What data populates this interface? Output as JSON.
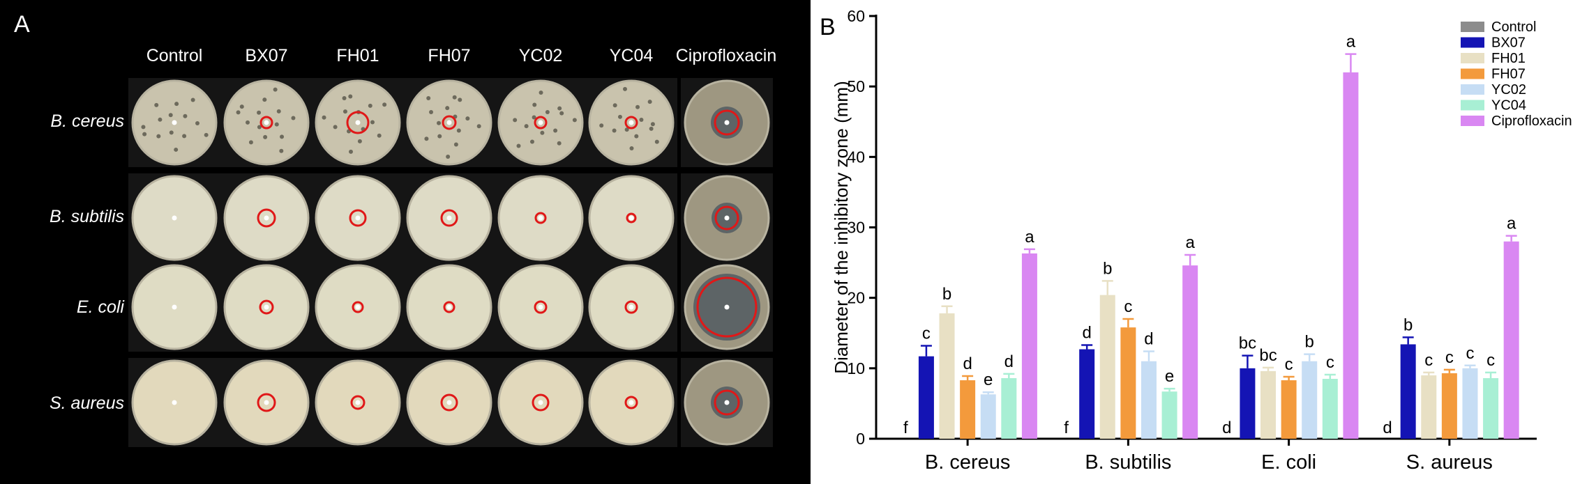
{
  "panelA": {
    "label": "A",
    "columns": [
      "Control",
      "BX07",
      "FH01",
      "FH07",
      "YC02",
      "YC04",
      "Ciprofloxacin"
    ],
    "rows": [
      "B. cereus",
      "B. subtilis",
      "E. coli",
      "S. aureus"
    ]
  },
  "chart_data": {
    "type": "bar",
    "panel_label": "B",
    "categories": [
      "B. cereus",
      "B. subtilis",
      "E. coli",
      "S. aureus"
    ],
    "ylabel": "Diameter of the inhibitory zone (mm)",
    "xlabel": "",
    "ylim": [
      0,
      60
    ],
    "yticks": [
      0,
      10,
      20,
      30,
      40,
      50,
      60
    ],
    "legend_position": "top-right",
    "series": [
      {
        "name": "Control",
        "color": "#8c8c8c",
        "values": [
          0,
          0,
          0,
          0
        ],
        "errors": [
          0,
          0,
          0,
          0
        ],
        "letters": [
          "f",
          "f",
          "d",
          "d"
        ]
      },
      {
        "name": "BX07",
        "color": "#1414b4",
        "values": [
          11.7,
          12.7,
          10.0,
          13.4
        ],
        "errors": [
          1.5,
          0.6,
          1.8,
          1.0
        ],
        "letters": [
          "c",
          "d",
          "bc",
          "b"
        ]
      },
      {
        "name": "FH01",
        "color": "#e8e0c4",
        "values": [
          17.8,
          20.4,
          9.6,
          9.0
        ],
        "errors": [
          1.0,
          2.0,
          0.5,
          0.4
        ],
        "letters": [
          "b",
          "b",
          "bc",
          "c"
        ]
      },
      {
        "name": "FH07",
        "color": "#f39a3c",
        "values": [
          8.3,
          15.8,
          8.3,
          9.3
        ],
        "errors": [
          0.6,
          1.2,
          0.5,
          0.5
        ],
        "letters": [
          "d",
          "c",
          "c",
          "c"
        ]
      },
      {
        "name": "YC02",
        "color": "#c6ddf4",
        "values": [
          6.3,
          11.0,
          11.0,
          10.0
        ],
        "errors": [
          0.3,
          1.4,
          1.0,
          0.4
        ],
        "letters": [
          "e",
          "d",
          "b",
          "c"
        ]
      },
      {
        "name": "YC04",
        "color": "#a8efd4",
        "values": [
          8.6,
          6.7,
          8.5,
          8.6
        ],
        "errors": [
          0.6,
          0.4,
          0.6,
          0.8
        ],
        "letters": [
          "d",
          "e",
          "c",
          "c"
        ]
      },
      {
        "name": "Ciprofloxacin",
        "color": "#d987f2",
        "values": [
          26.3,
          24.6,
          52.0,
          28.0
        ],
        "errors": [
          0.6,
          1.5,
          2.6,
          0.8
        ],
        "letters": [
          "a",
          "a",
          "a",
          "a"
        ]
      }
    ]
  }
}
